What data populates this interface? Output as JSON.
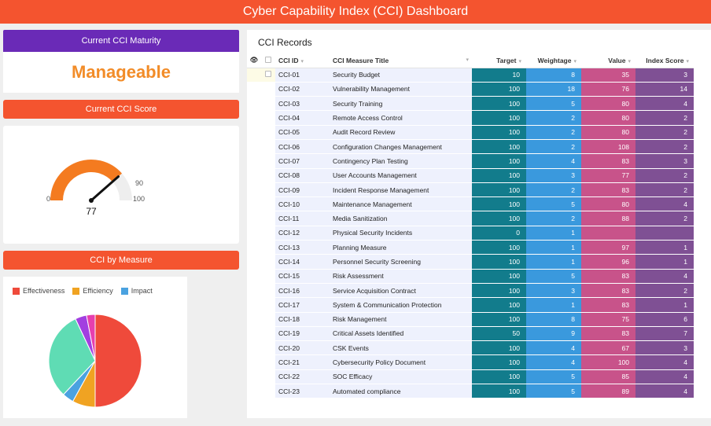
{
  "header": {
    "title": "Cyber Capability Index (CCI) Dashboard"
  },
  "maturity": {
    "label": "Current CCI Maturity",
    "value": "Manageable"
  },
  "score": {
    "label": "Current CCI Score",
    "value": "77",
    "numeric": 77,
    "min_label": "0",
    "threshold_label": "90",
    "max_label": "100",
    "colors": {
      "fill": "#f47b20",
      "track": "#eeeeee",
      "needle": "#111111"
    }
  },
  "measure": {
    "label": "CCI by Measure",
    "legend": [
      {
        "name": "Effectiveness",
        "color": "#ef4a3b"
      },
      {
        "name": "Efficiency",
        "color": "#f0a322"
      },
      {
        "name": "Impact",
        "color": "#4aa2e0"
      }
    ],
    "slices": [
      {
        "value": 50,
        "color": "#ef4a3b"
      },
      {
        "value": 8,
        "color": "#f0a322"
      },
      {
        "value": 4,
        "color": "#4aa2e0"
      },
      {
        "value": 31,
        "color": "#5fdcb4"
      },
      {
        "value": 4,
        "color": "#a23fe0"
      },
      {
        "value": 3,
        "color": "#e63fae"
      }
    ]
  },
  "records": {
    "title": "CCI Records",
    "columns": {
      "id": "CCI ID",
      "title": "CCI Measure Title",
      "target": "Target",
      "weightage": "Weightage",
      "value": "Value",
      "index": "Index Score"
    },
    "rows": [
      {
        "id": "CCI-01",
        "title": "Security Budget",
        "target": "10",
        "weightage": "8",
        "value": "35",
        "index": "3"
      },
      {
        "id": "CCI-02",
        "title": "Vulnerability Management",
        "target": "100",
        "weightage": "18",
        "value": "76",
        "index": "14"
      },
      {
        "id": "CCI-03",
        "title": "Security Training",
        "target": "100",
        "weightage": "5",
        "value": "80",
        "index": "4"
      },
      {
        "id": "CCI-04",
        "title": "Remote Access Control",
        "target": "100",
        "weightage": "2",
        "value": "80",
        "index": "2"
      },
      {
        "id": "CCI-05",
        "title": "Audit Record Review",
        "target": "100",
        "weightage": "2",
        "value": "80",
        "index": "2"
      },
      {
        "id": "CCI-06",
        "title": "Configuration Changes Management",
        "target": "100",
        "weightage": "2",
        "value": "108",
        "index": "2"
      },
      {
        "id": "CCI-07",
        "title": "Contingency Plan Testing",
        "target": "100",
        "weightage": "4",
        "value": "83",
        "index": "3"
      },
      {
        "id": "CCI-08",
        "title": "User Accounts Management",
        "target": "100",
        "weightage": "3",
        "value": "77",
        "index": "2"
      },
      {
        "id": "CCI-09",
        "title": "Incident Response Management",
        "target": "100",
        "weightage": "2",
        "value": "83",
        "index": "2"
      },
      {
        "id": "CCI-10",
        "title": "Maintenance Management",
        "target": "100",
        "weightage": "5",
        "value": "80",
        "index": "4"
      },
      {
        "id": "CCI-11",
        "title": "Media Sanitization",
        "target": "100",
        "weightage": "2",
        "value": "88",
        "index": "2"
      },
      {
        "id": "CCI-12",
        "title": "Physical Security Incidents",
        "target": "0",
        "weightage": "1",
        "value": "",
        "index": ""
      },
      {
        "id": "CCI-13",
        "title": "Planning Measure",
        "target": "100",
        "weightage": "1",
        "value": "97",
        "index": "1"
      },
      {
        "id": "CCI-14",
        "title": "Personnel Security Screening",
        "target": "100",
        "weightage": "1",
        "value": "96",
        "index": "1"
      },
      {
        "id": "CCI-15",
        "title": "Risk Assessment",
        "target": "100",
        "weightage": "5",
        "value": "83",
        "index": "4"
      },
      {
        "id": "CCI-16",
        "title": "Service Acquisition Contract",
        "target": "100",
        "weightage": "3",
        "value": "83",
        "index": "2"
      },
      {
        "id": "CCI-17",
        "title": "System & Communication Protection",
        "target": "100",
        "weightage": "1",
        "value": "83",
        "index": "1"
      },
      {
        "id": "CCI-18",
        "title": "Risk Management",
        "target": "100",
        "weightage": "8",
        "value": "75",
        "index": "6"
      },
      {
        "id": "CCI-19",
        "title": "Critical Assets Identified",
        "target": "50",
        "weightage": "9",
        "value": "83",
        "index": "7"
      },
      {
        "id": "CCI-20",
        "title": "CSK Events",
        "target": "100",
        "weightage": "4",
        "value": "67",
        "index": "3"
      },
      {
        "id": "CCI-21",
        "title": "Cybersecurity Policy Document",
        "target": "100",
        "weightage": "4",
        "value": "100",
        "index": "4"
      },
      {
        "id": "CCI-22",
        "title": "SOC Efficacy",
        "target": "100",
        "weightage": "5",
        "value": "85",
        "index": "4"
      },
      {
        "id": "CCI-23",
        "title": "Automated compliance",
        "target": "100",
        "weightage": "5",
        "value": "89",
        "index": "4"
      }
    ]
  }
}
